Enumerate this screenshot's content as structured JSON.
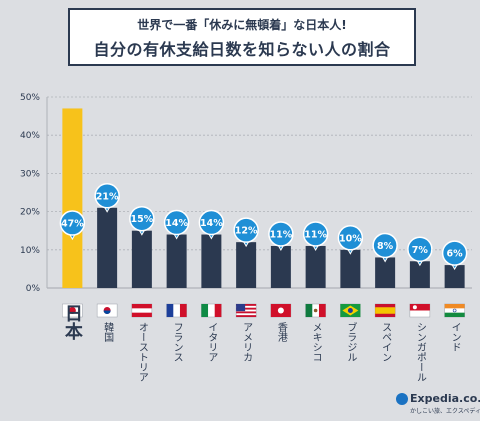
{
  "header": {
    "line1": "世界で一番「休みに無頓着」な日本人!",
    "line2": "自分の有休支給日数を知らない人の割合"
  },
  "chart_data": {
    "type": "bar",
    "title": "自分の有休支給日数を知らない人の割合",
    "categories": [
      "日本",
      "韓国",
      "オーストリア",
      "フランス",
      "イタリア",
      "アメリカ",
      "香港",
      "メキシコ",
      "ブラジル",
      "スペイン",
      "シンガポール",
      "インド"
    ],
    "values": [
      47,
      21,
      15,
      14,
      14,
      12,
      11,
      11,
      10,
      8,
      7,
      6
    ],
    "labels": [
      "47%",
      "21%",
      "15%",
      "14%",
      "14%",
      "12%",
      "11%",
      "11%",
      "10%",
      "8%",
      "7%",
      "6%"
    ],
    "yticks": [
      "0%",
      "10%",
      "20%",
      "30%",
      "40%",
      "50%"
    ],
    "ylim": [
      0,
      50
    ],
    "flags": [
      "japan",
      "korea",
      "austria",
      "france",
      "italy",
      "usa",
      "hongkong",
      "mexico",
      "brazil",
      "spain",
      "singapore",
      "india"
    ],
    "colors": {
      "highlight": "#f7c21b",
      "bar": "#2b3950",
      "bubble": "#1f8fd6",
      "grid": "#aeb2b8"
    }
  },
  "logo": {
    "text": "Expedia.co.jp",
    "sub": "かしこい旅、エクスペディア"
  }
}
